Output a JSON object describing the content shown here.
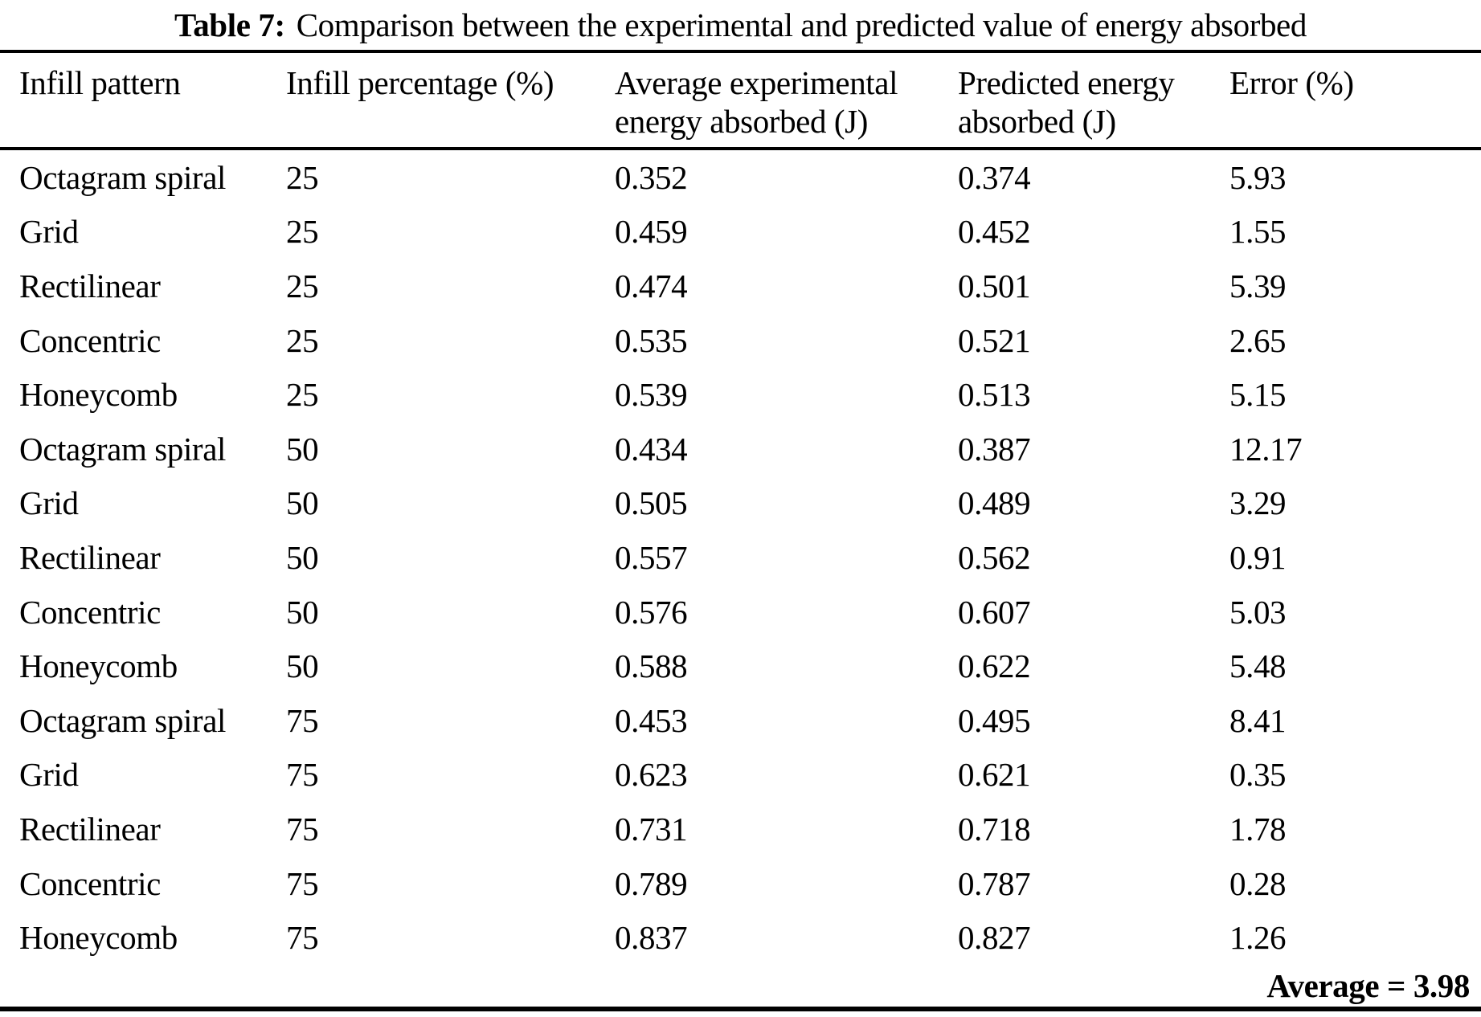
{
  "colors": {
    "text": "#000000",
    "background": "#ffffff",
    "rule": "#000000"
  },
  "table": {
    "caption_label": "Table 7:",
    "caption_text": "Comparison between the experimental and predicted value of energy absorbed",
    "columns": [
      {
        "line1": "Infill pattern",
        "line2": ""
      },
      {
        "line1": "Infill percentage (%)",
        "line2": ""
      },
      {
        "line1": "Average experimental",
        "line2": "energy absorbed (J)"
      },
      {
        "line1": "Predicted energy",
        "line2": "absorbed (J)"
      },
      {
        "line1": "Error (%)",
        "line2": ""
      }
    ],
    "rows": [
      {
        "pattern": "Octagram spiral",
        "infill": "25",
        "experimental": "0.352",
        "predicted": "0.374",
        "error": "5.93"
      },
      {
        "pattern": "Grid",
        "infill": "25",
        "experimental": "0.459",
        "predicted": "0.452",
        "error": "1.55"
      },
      {
        "pattern": "Rectilinear",
        "infill": "25",
        "experimental": "0.474",
        "predicted": "0.501",
        "error": "5.39"
      },
      {
        "pattern": "Concentric",
        "infill": "25",
        "experimental": "0.535",
        "predicted": "0.521",
        "error": "2.65"
      },
      {
        "pattern": "Honeycomb",
        "infill": "25",
        "experimental": "0.539",
        "predicted": "0.513",
        "error": "5.15"
      },
      {
        "pattern": "Octagram spiral",
        "infill": "50",
        "experimental": "0.434",
        "predicted": "0.387",
        "error": "12.17"
      },
      {
        "pattern": "Grid",
        "infill": "50",
        "experimental": "0.505",
        "predicted": "0.489",
        "error": "3.29"
      },
      {
        "pattern": "Rectilinear",
        "infill": "50",
        "experimental": "0.557",
        "predicted": "0.562",
        "error": "0.91"
      },
      {
        "pattern": "Concentric",
        "infill": "50",
        "experimental": "0.576",
        "predicted": "0.607",
        "error": "5.03"
      },
      {
        "pattern": "Honeycomb",
        "infill": "50",
        "experimental": "0.588",
        "predicted": "0.622",
        "error": "5.48"
      },
      {
        "pattern": "Octagram spiral",
        "infill": "75",
        "experimental": "0.453",
        "predicted": "0.495",
        "error": "8.41"
      },
      {
        "pattern": "Grid",
        "infill": "75",
        "experimental": "0.623",
        "predicted": "0.621",
        "error": "0.35"
      },
      {
        "pattern": "Rectilinear",
        "infill": "75",
        "experimental": "0.731",
        "predicted": "0.718",
        "error": "1.78"
      },
      {
        "pattern": "Concentric",
        "infill": "75",
        "experimental": "0.789",
        "predicted": "0.787",
        "error": "0.28"
      },
      {
        "pattern": "Honeycomb",
        "infill": "75",
        "experimental": "0.837",
        "predicted": "0.827",
        "error": "1.26"
      }
    ],
    "footer": "Average = 3.98"
  },
  "chart_data": {
    "type": "table",
    "title": "Table 7: Comparison between the experimental and predicted value of energy absorbed",
    "categories": [
      "Infill pattern",
      "Infill percentage (%)",
      "Average experimental energy absorbed (J)",
      "Predicted energy absorbed (J)",
      "Error (%)"
    ],
    "series": [
      {
        "name": "Infill pattern",
        "values": [
          "Octagram spiral",
          "Grid",
          "Rectilinear",
          "Concentric",
          "Honeycomb",
          "Octagram spiral",
          "Grid",
          "Rectilinear",
          "Concentric",
          "Honeycomb",
          "Octagram spiral",
          "Grid",
          "Rectilinear",
          "Concentric",
          "Honeycomb"
        ]
      },
      {
        "name": "Infill percentage (%)",
        "values": [
          25,
          25,
          25,
          25,
          25,
          50,
          50,
          50,
          50,
          50,
          75,
          75,
          75,
          75,
          75
        ]
      },
      {
        "name": "Average experimental energy absorbed (J)",
        "values": [
          0.352,
          0.459,
          0.474,
          0.535,
          0.539,
          0.434,
          0.505,
          0.557,
          0.576,
          0.588,
          0.453,
          0.623,
          0.731,
          0.789,
          0.837
        ]
      },
      {
        "name": "Predicted energy absorbed (J)",
        "values": [
          0.374,
          0.452,
          0.501,
          0.521,
          0.513,
          0.387,
          0.489,
          0.562,
          0.607,
          0.622,
          0.495,
          0.621,
          0.718,
          0.787,
          0.827
        ]
      },
      {
        "name": "Error (%)",
        "values": [
          5.93,
          1.55,
          5.39,
          2.65,
          5.15,
          12.17,
          3.29,
          0.91,
          5.03,
          5.48,
          8.41,
          0.35,
          1.78,
          0.28,
          1.26
        ]
      }
    ],
    "annotations": [
      "Average = 3.98"
    ]
  }
}
